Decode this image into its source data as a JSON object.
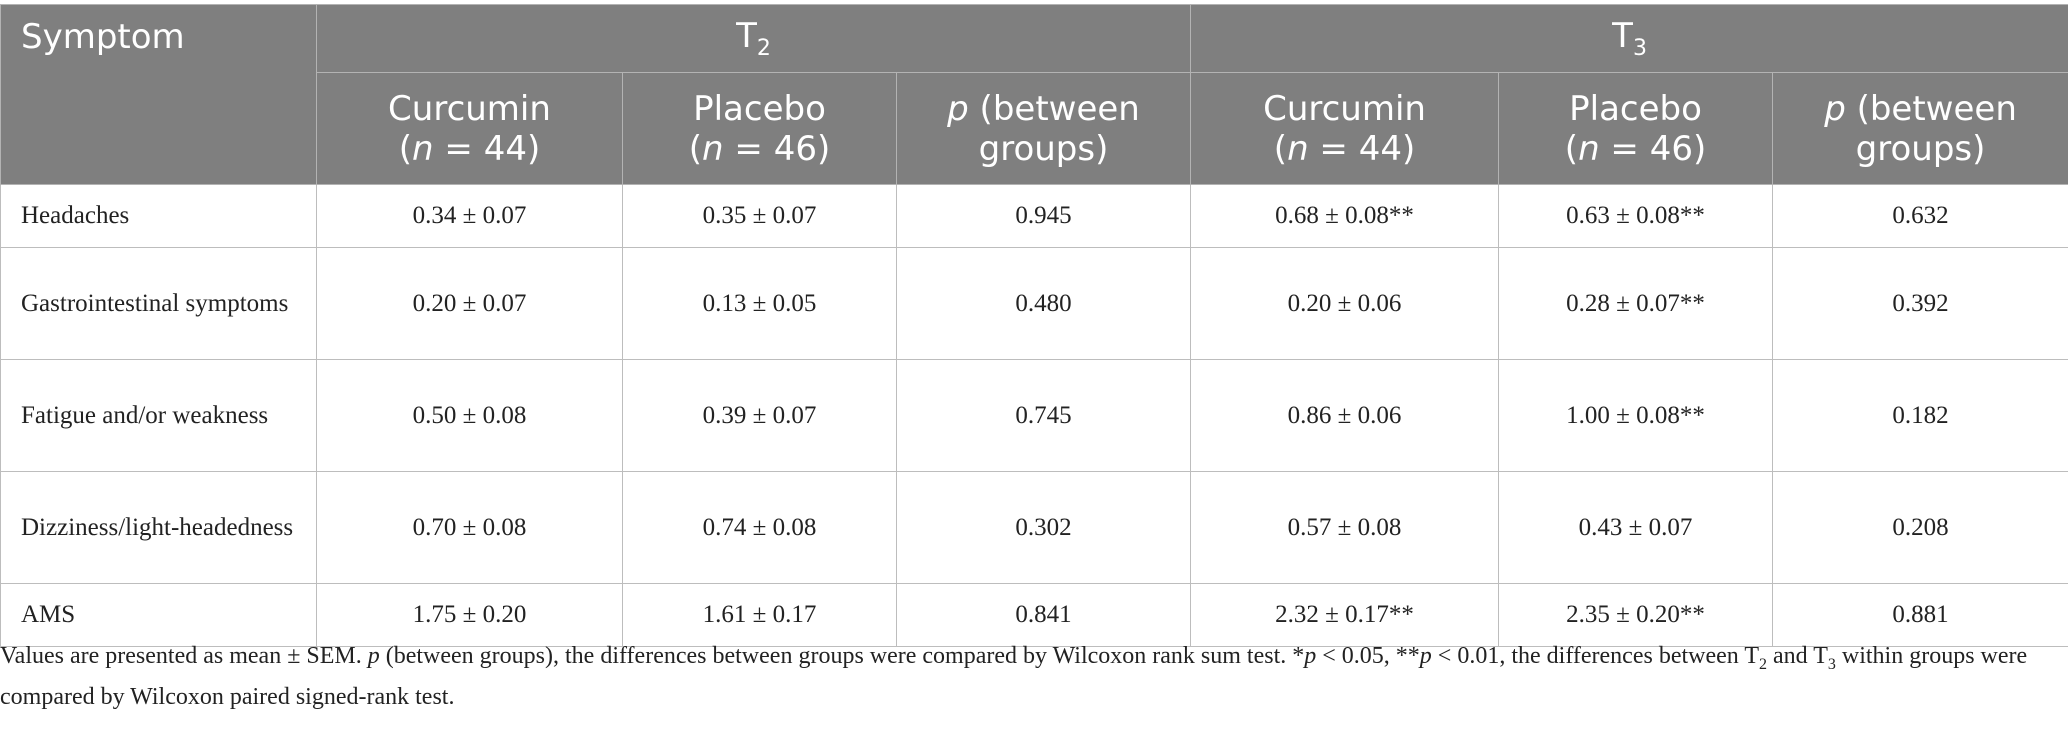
{
  "table": {
    "header": {
      "symptom": "Symptom",
      "t2": "T",
      "t2_sub": "2",
      "t3": "T",
      "t3_sub": "3",
      "curcumin": "Curcumin",
      "curcumin_n": "44",
      "placebo": "Placebo",
      "placebo_n": "46",
      "n_label": "n",
      "n_eq": " = ",
      "p_label": "p",
      "between": " (between groups)"
    },
    "rows": [
      {
        "symptom": "Headaches",
        "t2_curcumin": "0.34 ± 0.07",
        "t2_placebo": "0.35 ± 0.07",
        "t2_p": "0.945",
        "t3_curcumin": "0.68 ± 0.08**",
        "t3_placebo": "0.63 ± 0.08**",
        "t3_p": "0.632"
      },
      {
        "symptom": "Gastrointestinal symptoms",
        "t2_curcumin": "0.20 ± 0.07",
        "t2_placebo": "0.13 ± 0.05",
        "t2_p": "0.480",
        "t3_curcumin": "0.20 ± 0.06",
        "t3_placebo": "0.28 ± 0.07**",
        "t3_p": "0.392"
      },
      {
        "symptom": "Fatigue and/or weakness",
        "t2_curcumin": "0.50 ± 0.08",
        "t2_placebo": "0.39 ± 0.07",
        "t2_p": "0.745",
        "t3_curcumin": "0.86 ± 0.06",
        "t3_placebo": "1.00 ± 0.08**",
        "t3_p": "0.182"
      },
      {
        "symptom": "Dizziness/light-headedness",
        "t2_curcumin": "0.70 ± 0.08",
        "t2_placebo": "0.74 ± 0.08",
        "t2_p": "0.302",
        "t3_curcumin": "0.57 ± 0.08",
        "t3_placebo": "0.43 ± 0.07",
        "t3_p": "0.208"
      },
      {
        "symptom": "AMS",
        "t2_curcumin": "1.75 ± 0.20",
        "t2_placebo": "1.61 ± 0.17",
        "t2_p": "0.841",
        "t3_curcumin": "2.32 ± 0.17**",
        "t3_placebo": "2.35 ± 0.20**",
        "t3_p": "0.881"
      }
    ]
  },
  "footnote": {
    "part1": "Values are presented as mean ± SEM. ",
    "p_italic": "p",
    "part2": " (between groups), the differences between groups were compared by Wilcoxon rank sum test. *",
    "p_italic2": "p",
    "part3": " < 0.05, **",
    "p_italic3": "p",
    "part4": " < 0.01, the differences between T",
    "sub2": "2",
    "part5": " and T",
    "sub3": "3",
    "part6": " within groups were compared by Wilcoxon paired signed-rank test."
  }
}
